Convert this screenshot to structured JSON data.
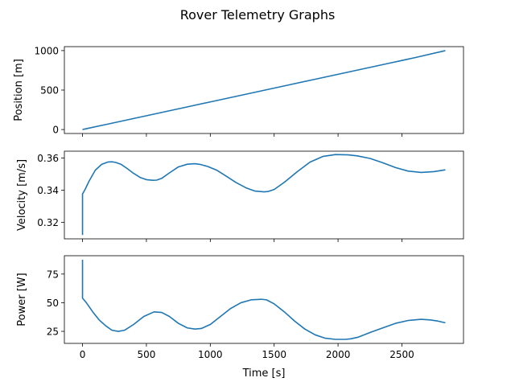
{
  "figure": {
    "title": "Rover Telemetry Graphs",
    "xlabel": "Time [s]"
  },
  "colors": {
    "line": "#1f77b4",
    "axes": "#000000",
    "background": "#ffffff"
  },
  "chart_data": [
    {
      "type": "line",
      "ylabel": "Position [m]",
      "xlim": [
        -142,
        2982
      ],
      "ylim": [
        -50,
        1050
      ],
      "xticks": [
        0,
        500,
        1000,
        1500,
        2000,
        2500
      ],
      "xticklabels_visible": false,
      "yticks": [
        0,
        500,
        1000
      ],
      "ytick_labels": [
        "0",
        "500",
        "1000"
      ],
      "grid": false,
      "series": [
        {
          "x": [
            0,
            200,
            400,
            600,
            800,
            1000,
            1200,
            1400,
            1600,
            1800,
            2000,
            2200,
            2400,
            2600,
            2840
          ],
          "y": [
            0,
            70,
            140,
            210,
            280,
            350,
            420,
            490,
            560,
            630,
            700,
            770,
            840,
            910,
            1000
          ]
        }
      ]
    },
    {
      "type": "line",
      "ylabel": "Velocity [m/s]",
      "xlim": [
        -142,
        2982
      ],
      "ylim": [
        0.3098,
        0.3643
      ],
      "xticks": [
        0,
        500,
        1000,
        1500,
        2000,
        2500
      ],
      "xticklabels_visible": false,
      "yticks": [
        0.32,
        0.34,
        0.36
      ],
      "ytick_labels": [
        "0.32",
        "0.34",
        "0.36"
      ],
      "grid": false,
      "series": [
        {
          "x": [
            0,
            0,
            0,
            20,
            50,
            100,
            150,
            200,
            230,
            260,
            300,
            350,
            400,
            450,
            500,
            550,
            580,
            620,
            680,
            750,
            820,
            880,
            920,
            980,
            1050,
            1120,
            1200,
            1280,
            1350,
            1420,
            1450,
            1500,
            1580,
            1680,
            1780,
            1880,
            1980,
            2080,
            2150,
            2250,
            2350,
            2450,
            2550,
            2650,
            2750,
            2840
          ],
          "y": [
            0.3122,
            0.33,
            0.3377,
            0.3405,
            0.3455,
            0.3525,
            0.3561,
            0.3576,
            0.3577,
            0.3573,
            0.3562,
            0.3535,
            0.3505,
            0.348,
            0.3466,
            0.3462,
            0.3463,
            0.3474,
            0.3508,
            0.3545,
            0.3562,
            0.3565,
            0.3561,
            0.3548,
            0.3525,
            0.349,
            0.3449,
            0.3415,
            0.3395,
            0.339,
            0.3392,
            0.3405,
            0.345,
            0.3515,
            0.3575,
            0.361,
            0.3622,
            0.362,
            0.3614,
            0.3598,
            0.3571,
            0.3541,
            0.3519,
            0.3511,
            0.3516,
            0.3527
          ]
        }
      ]
    },
    {
      "type": "line",
      "ylabel": "Power [W]",
      "xlim": [
        -142,
        2982
      ],
      "ylim": [
        14.5,
        91
      ],
      "xticks": [
        0,
        500,
        1000,
        1500,
        2000,
        2500
      ],
      "xtick_labels": [
        "0",
        "500",
        "1000",
        "1500",
        "2000",
        "2500"
      ],
      "yticks": [
        25,
        50,
        75
      ],
      "ytick_labels": [
        "25",
        "50",
        "75"
      ],
      "grid": false,
      "series": [
        {
          "x": [
            0,
            0,
            0,
            30,
            80,
            130,
            180,
            230,
            280,
            330,
            400,
            480,
            560,
            620,
            680,
            750,
            820,
            880,
            930,
            1000,
            1080,
            1160,
            1240,
            1320,
            1400,
            1440,
            1500,
            1580,
            1660,
            1740,
            1820,
            1900,
            1980,
            2060,
            2100,
            2160,
            2250,
            2350,
            2450,
            2550,
            2650,
            2720,
            2780,
            2840
          ],
          "y": [
            87.5,
            70,
            54,
            50,
            42,
            35,
            30,
            26,
            25,
            26,
            31,
            38,
            42,
            41.5,
            38,
            32,
            28,
            27,
            27.5,
            31,
            38,
            45,
            50,
            52.5,
            53,
            52.5,
            49,
            42,
            34,
            27,
            22,
            19,
            18,
            18,
            18.5,
            20,
            24,
            28,
            32,
            34.5,
            35.5,
            35,
            34,
            32.5
          ]
        }
      ]
    }
  ]
}
